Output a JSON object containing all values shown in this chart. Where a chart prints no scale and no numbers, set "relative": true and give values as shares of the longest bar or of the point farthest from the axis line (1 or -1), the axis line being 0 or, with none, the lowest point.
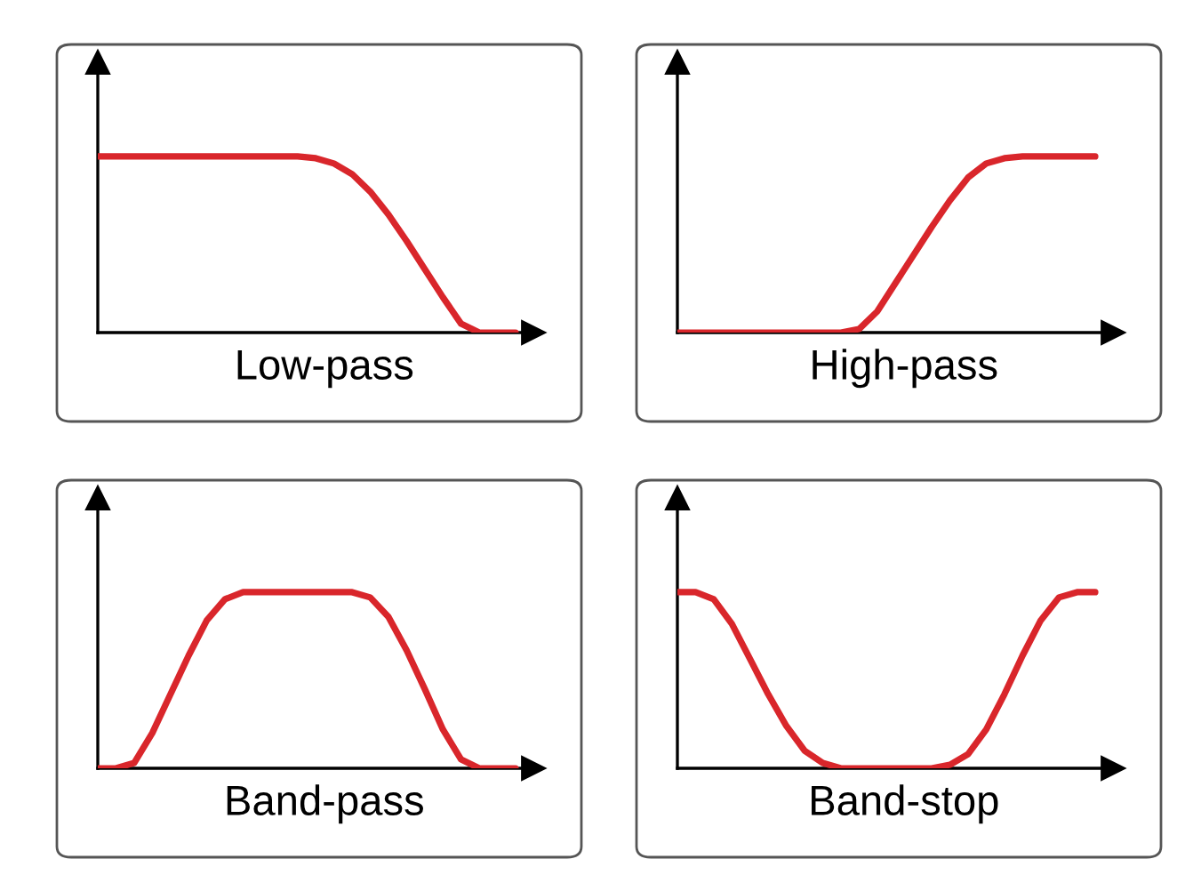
{
  "chart_data": [
    {
      "type": "line",
      "xlabel": "Low-pass",
      "relative": true,
      "categories": [
        null,
        null,
        null,
        null,
        null,
        null,
        null,
        null,
        null,
        null,
        null,
        null,
        null,
        null,
        null,
        null,
        null,
        null,
        null,
        null,
        null,
        null,
        null,
        null
      ],
      "series": [
        {
          "color": "#d9262b",
          "values": [
            1,
            1,
            1,
            1,
            1,
            1,
            1,
            1,
            1,
            1,
            1,
            1,
            0.99,
            0.96,
            0.9,
            0.8,
            0.67,
            0.52,
            0.36,
            0.2,
            0.05,
            0,
            0,
            0
          ]
        }
      ]
    },
    {
      "type": "line",
      "xlabel": "High-pass",
      "relative": true,
      "categories": [
        null,
        null,
        null,
        null,
        null,
        null,
        null,
        null,
        null,
        null,
        null,
        null,
        null,
        null,
        null,
        null,
        null,
        null,
        null,
        null,
        null,
        null,
        null,
        null
      ],
      "series": [
        {
          "color": "#d9262b",
          "values": [
            0,
            0,
            0,
            0,
            0,
            0,
            0,
            0,
            0,
            0,
            0.02,
            0.12,
            0.28,
            0.44,
            0.6,
            0.75,
            0.88,
            0.96,
            0.99,
            1,
            1,
            1,
            1,
            1
          ]
        }
      ]
    },
    {
      "type": "line",
      "xlabel": "Band-pass",
      "relative": true,
      "categories": [
        null,
        null,
        null,
        null,
        null,
        null,
        null,
        null,
        null,
        null,
        null,
        null,
        null,
        null,
        null,
        null,
        null,
        null,
        null,
        null,
        null,
        null,
        null,
        null
      ],
      "series": [
        {
          "color": "#d9262b",
          "values": [
            0,
            0,
            0.03,
            0.2,
            0.42,
            0.64,
            0.84,
            0.96,
            1,
            1,
            1,
            1,
            1,
            1,
            1,
            0.97,
            0.86,
            0.67,
            0.45,
            0.22,
            0.05,
            0,
            0,
            0
          ]
        }
      ]
    },
    {
      "type": "line",
      "xlabel": "Band-stop",
      "relative": true,
      "categories": [
        null,
        null,
        null,
        null,
        null,
        null,
        null,
        null,
        null,
        null,
        null,
        null,
        null,
        null,
        null,
        null,
        null,
        null,
        null,
        null,
        null,
        null,
        null,
        null
      ],
      "series": [
        {
          "color": "#d9262b",
          "values": [
            1,
            1,
            0.96,
            0.82,
            0.62,
            0.42,
            0.24,
            0.1,
            0.03,
            0,
            0,
            0,
            0,
            0,
            0,
            0.02,
            0.08,
            0.22,
            0.42,
            0.64,
            0.84,
            0.97,
            1,
            1
          ]
        }
      ]
    }
  ]
}
